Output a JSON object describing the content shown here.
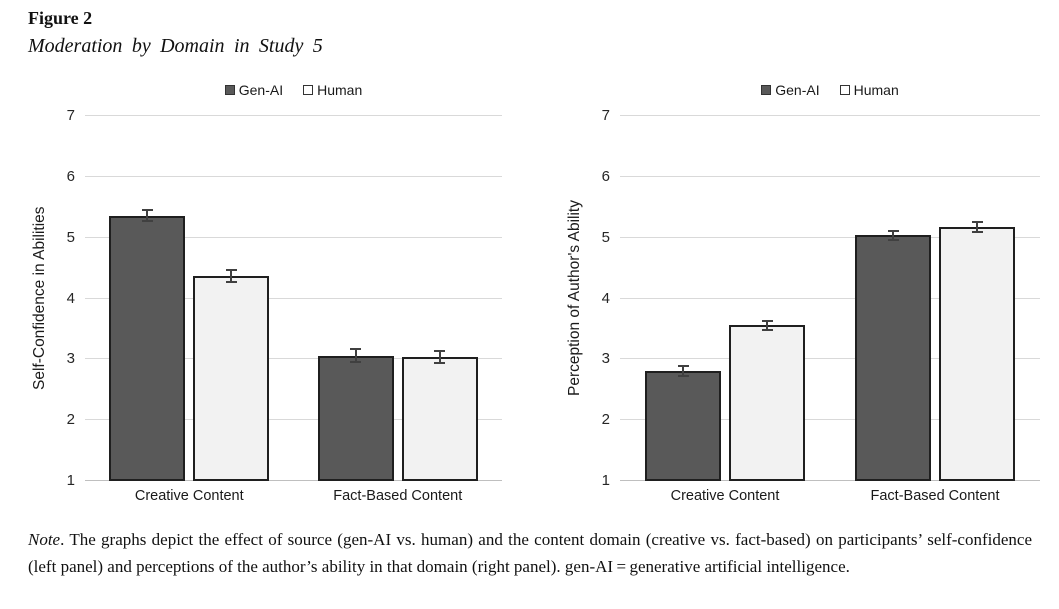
{
  "figure": {
    "label": "Figure 2",
    "title": "Moderation by Domain in Study 5"
  },
  "chart_data": [
    {
      "type": "bar",
      "panel": "left",
      "ylabel": "Self-Confidence in Abilities",
      "categories": [
        "Creative Content",
        "Fact-Based Content"
      ],
      "series": [
        {
          "name": "Gen-AI",
          "fill": "#595959",
          "values": [
            5.36,
            3.06
          ],
          "errors": [
            0.11,
            0.12
          ]
        },
        {
          "name": "Human",
          "fill": "#f2f2f2",
          "values": [
            4.37,
            3.04
          ],
          "errors": [
            0.11,
            0.12
          ]
        }
      ],
      "ylim": [
        1,
        7
      ],
      "yticks": [
        1,
        2,
        3,
        4,
        5,
        6,
        7
      ],
      "grid": true,
      "legend_position": "top"
    },
    {
      "type": "bar",
      "panel": "right",
      "ylabel": "Perception of Author's Ability",
      "categories": [
        "Creative Content",
        "Fact-Based Content"
      ],
      "series": [
        {
          "name": "Gen-AI",
          "fill": "#595959",
          "values": [
            2.81,
            5.04
          ],
          "errors": [
            0.1,
            0.09
          ]
        },
        {
          "name": "Human",
          "fill": "#f2f2f2",
          "values": [
            3.56,
            5.18
          ],
          "errors": [
            0.09,
            0.1
          ]
        }
      ],
      "ylim": [
        1,
        7
      ],
      "yticks": [
        1,
        2,
        3,
        4,
        5,
        6,
        7
      ],
      "grid": true,
      "legend_position": "top"
    }
  ],
  "note": {
    "lead": "Note",
    "text": ".  The graphs depict the effect of source (gen-AI vs. human) and the content domain (creative vs. fact-based) on participants’ self-confidence (left panel) and perceptions of the author’s ability in that domain (right panel). gen-AI = generative artificial intelligence."
  },
  "colors": {
    "bar_border": "#1f1f1f",
    "gridline": "#d9d9d9",
    "axis_line": "#bfbfbf",
    "error_bar": "#404040",
    "text": "#1a1a1a"
  }
}
